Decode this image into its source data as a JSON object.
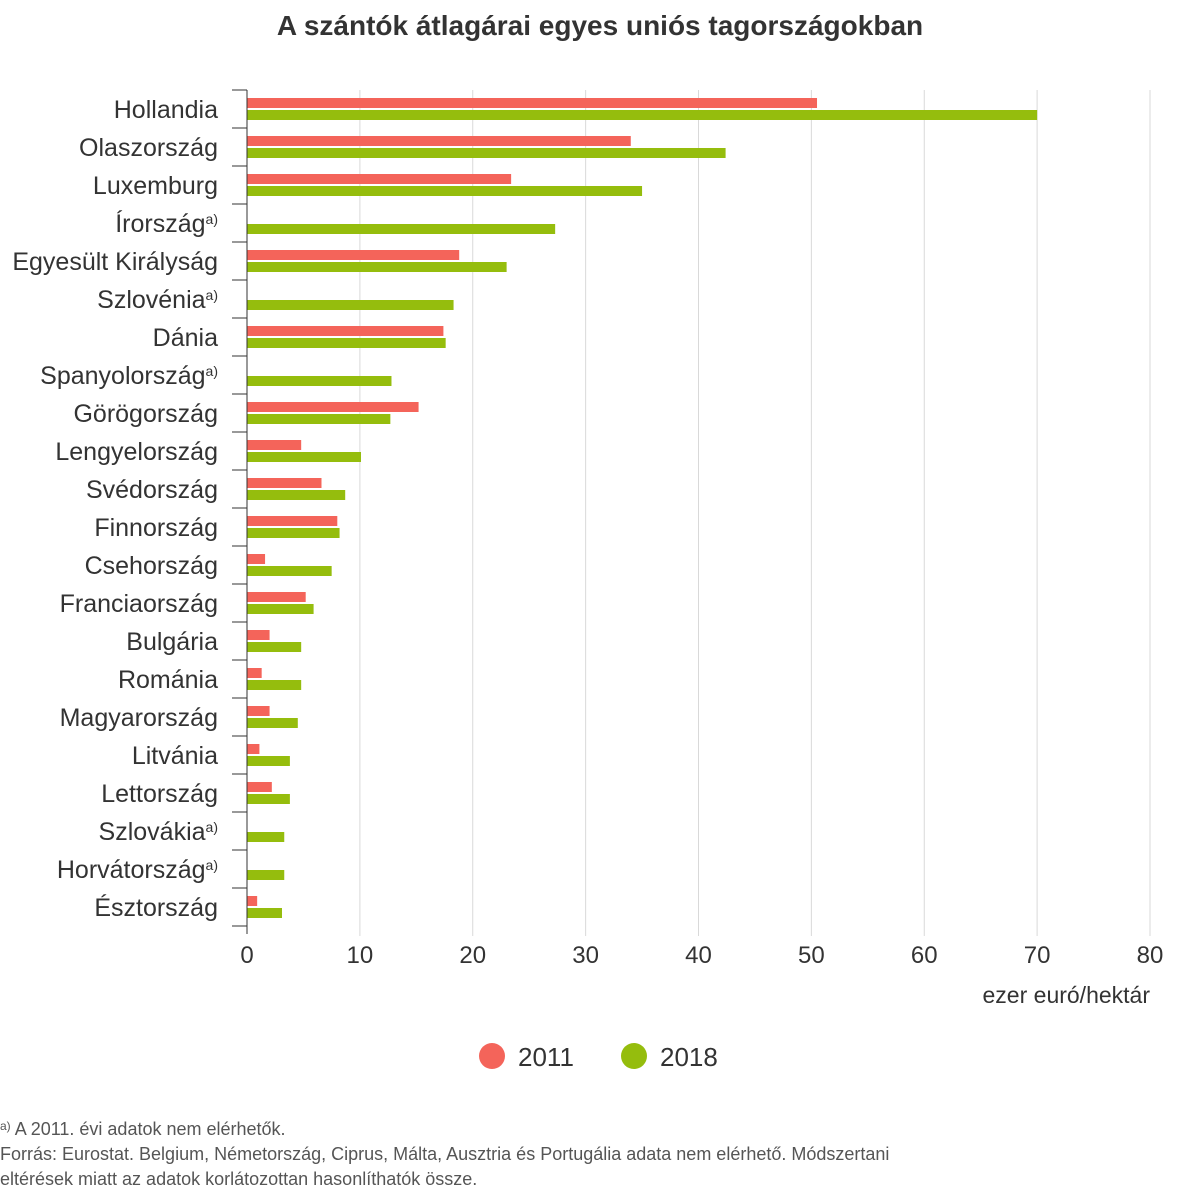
{
  "chart_data": {
    "type": "bar",
    "orientation": "horizontal",
    "title": "A szántók átlagárai egyes uniós tagországokban",
    "xlabel": "ezer euró/hektár",
    "ylabel": "",
    "xlim": [
      0,
      80
    ],
    "xticks": [
      "0",
      "10",
      "20",
      "30",
      "40",
      "50",
      "60",
      "70",
      "80"
    ],
    "grid": "vertical",
    "legend_position": "bottom",
    "footnote_marker": "a)",
    "categories": [
      "Hollandia",
      "Olaszország",
      "Luxemburg",
      "Írország",
      "Egyesült Királyság",
      "Szlovénia",
      "Dánia",
      "Spanyolország",
      "Görögország",
      "Lengyelország",
      "Svédország",
      "Finnország",
      "Csehország",
      "Franciaország",
      "Bulgária",
      "Románia",
      "Magyarország",
      "Litvánia",
      "Lettország",
      "Szlovákia",
      "Horvátország",
      "Észtország"
    ],
    "footnoted": [
      false,
      false,
      false,
      true,
      false,
      true,
      false,
      true,
      false,
      false,
      false,
      false,
      false,
      false,
      false,
      false,
      false,
      false,
      false,
      true,
      true,
      false
    ],
    "series": [
      {
        "name": "2011",
        "color": "#f4645a",
        "values": [
          50.5,
          34.0,
          23.4,
          null,
          18.8,
          null,
          17.4,
          null,
          15.2,
          4.8,
          6.6,
          8.0,
          1.6,
          5.2,
          2.0,
          1.3,
          2.0,
          1.1,
          2.2,
          null,
          null,
          0.9
        ]
      },
      {
        "name": "2018",
        "color": "#95bd0d",
        "values": [
          70.0,
          42.4,
          35.0,
          27.3,
          23.0,
          18.3,
          17.6,
          12.8,
          12.7,
          10.1,
          8.7,
          8.2,
          7.5,
          5.9,
          4.8,
          4.8,
          4.5,
          3.8,
          3.8,
          3.3,
          3.3,
          3.1
        ]
      }
    ]
  },
  "footnotes": {
    "marker": "a)",
    "note_a": "A 2011. évi adatok nem elérhetők.",
    "source_line1": "Forrás: Eurostat. Belgium, Németország, Ciprus, Málta, Ausztria és Portugália adata nem elérhető. Módszertani",
    "source_line2": "eltérések miatt az adatok korlátozottan hasonlíthatók össze."
  }
}
